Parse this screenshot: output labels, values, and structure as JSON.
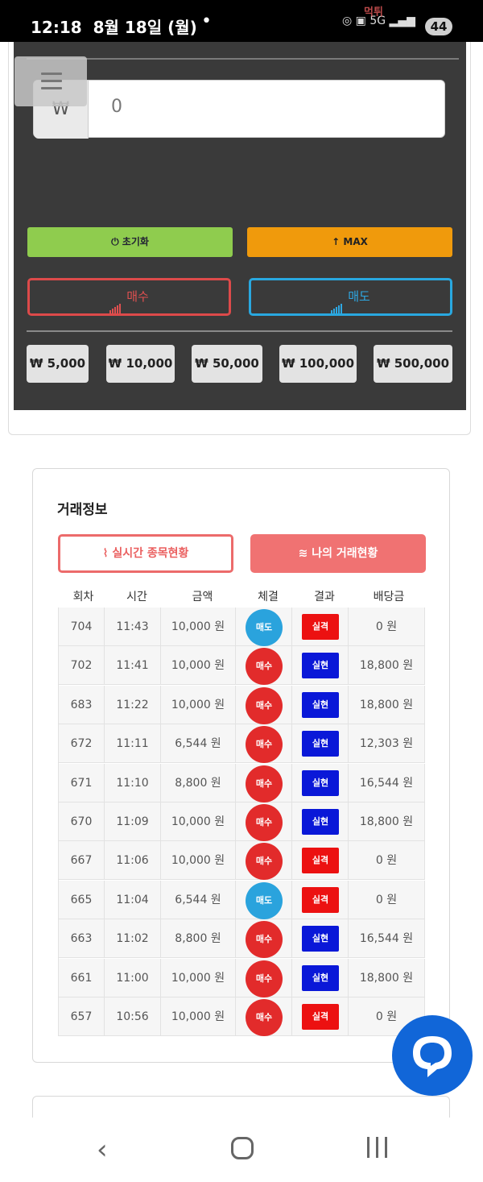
{
  "status_bar": {
    "time": "12:18",
    "date": "8월 18일 (월)",
    "dot": "•",
    "network": "5G",
    "battery": "44",
    "watermark": "먹튀"
  },
  "trade_panel": {
    "currency_symbol": "₩",
    "amount_value": "0",
    "reset_label": "초기화",
    "max_label": "MAX",
    "buy_label": "매수",
    "sell_label": "매도",
    "quick_amounts": [
      "₩ 5,000",
      "₩ 10,000",
      "₩ 50,000",
      "₩ 100,000",
      "₩ 500,000"
    ],
    "colors": {
      "panel_bg": "#3a3a3a",
      "reset_bg": "#8fcc4e",
      "max_bg": "#f09a0c",
      "buy_border": "#dd4a4a",
      "sell_border": "#29a8e0"
    }
  },
  "trade_info": {
    "title": "거래정보",
    "tab_realtime": "실시간 종목현황",
    "tab_mine": "나의 거래현황",
    "columns": [
      "회차",
      "시간",
      "금액",
      "체결",
      "결과",
      "배당금"
    ],
    "rows": [
      {
        "round": "704",
        "time": "11:43",
        "amount": "10,000 원",
        "side": "매도",
        "result": "실격",
        "payout": "0 원"
      },
      {
        "round": "702",
        "time": "11:41",
        "amount": "10,000 원",
        "side": "매수",
        "result": "실현",
        "payout": "18,800 원"
      },
      {
        "round": "683",
        "time": "11:22",
        "amount": "10,000 원",
        "side": "매수",
        "result": "실현",
        "payout": "18,800 원"
      },
      {
        "round": "672",
        "time": "11:11",
        "amount": "6,544 원",
        "side": "매수",
        "result": "실현",
        "payout": "12,303 원"
      },
      {
        "round": "671",
        "time": "11:10",
        "amount": "8,800 원",
        "side": "매수",
        "result": "실현",
        "payout": "16,544 원"
      },
      {
        "round": "670",
        "time": "11:09",
        "amount": "10,000 원",
        "side": "매수",
        "result": "실현",
        "payout": "18,800 원"
      },
      {
        "round": "667",
        "time": "11:06",
        "amount": "10,000 원",
        "side": "매수",
        "result": "실격",
        "payout": "0 원"
      },
      {
        "round": "665",
        "time": "11:04",
        "amount": "6,544 원",
        "side": "매도",
        "result": "실격",
        "payout": "0 원"
      },
      {
        "round": "663",
        "time": "11:02",
        "amount": "8,800 원",
        "side": "매수",
        "result": "실현",
        "payout": "16,544 원"
      },
      {
        "round": "661",
        "time": "11:00",
        "amount": "10,000 원",
        "side": "매수",
        "result": "실현",
        "payout": "18,800 원"
      },
      {
        "round": "657",
        "time": "10:56",
        "amount": "10,000 원",
        "side": "매수",
        "result": "실격",
        "payout": "0 원"
      }
    ],
    "colors": {
      "buy_circle": "#e22b2b",
      "sell_circle": "#2aa3dd",
      "realized_badge": "#0a18d8",
      "failed_badge": "#ec1111"
    }
  },
  "icons": {
    "menu": "hamburger-icon",
    "chat": "chat-bubble-icon",
    "reset": "power-icon",
    "max": "arrow-up-icon",
    "nav_back": "back-icon",
    "nav_home": "home-icon",
    "nav_recent": "recent-apps-icon"
  }
}
